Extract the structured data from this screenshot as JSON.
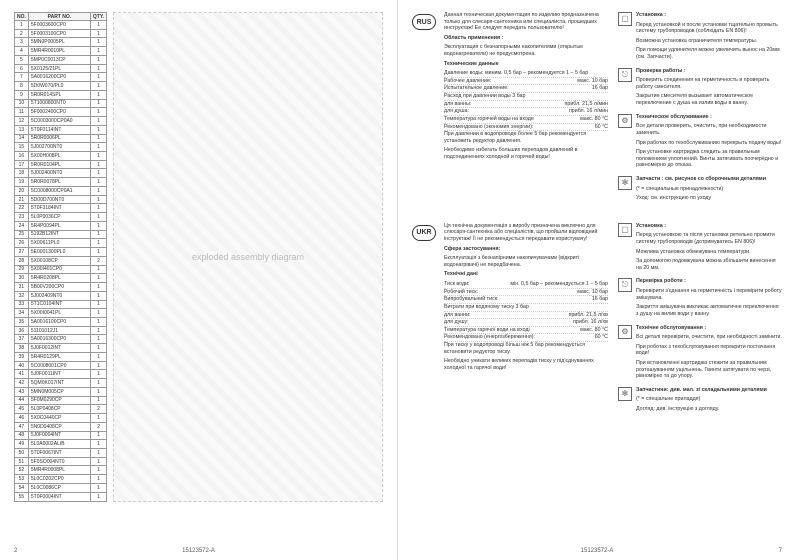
{
  "docNumber": "15123572-A",
  "pageLeft": "2",
  "pageRight": "7",
  "partsTable": {
    "headers": [
      "NO.",
      "PART NO.",
      "QTY."
    ],
    "rows": [
      [
        "1",
        "5F0003600CP0",
        "1"
      ],
      [
        "2",
        "5F0003100CP0",
        "1"
      ],
      [
        "3",
        "5MN0P0005PL",
        "1"
      ],
      [
        "4",
        "5MR4R0010PL",
        "1"
      ],
      [
        "5",
        "5MP0C0013CP",
        "1"
      ],
      [
        "6",
        "5X0125/21PL",
        "1"
      ],
      [
        "7",
        "5A0016200CP0",
        "1"
      ],
      [
        "8",
        "5D0W070/PL0",
        "1"
      ],
      [
        "9",
        "5R0R014SPL",
        "1"
      ],
      [
        "10",
        "5T1000800NT0",
        "1"
      ],
      [
        "11",
        "5F0002400CP0",
        "1"
      ],
      [
        "12",
        "5C0003000CP0A0",
        "1"
      ],
      [
        "13",
        "5T0F0114INT",
        "1"
      ],
      [
        "14",
        "5R0R0006PL",
        "1"
      ],
      [
        "15",
        "5J002700NT0",
        "1"
      ],
      [
        "16",
        "5X00H008PL",
        "1"
      ],
      [
        "17",
        "5R0R0104PL",
        "1"
      ],
      [
        "18",
        "5J002400NT0",
        "1"
      ],
      [
        "19",
        "5R0R0078PL",
        "1"
      ],
      [
        "20",
        "5C0008000CP0A1",
        "1"
      ],
      [
        "21",
        "5D00D700NT0",
        "1"
      ],
      [
        "22",
        "5T0F3184INT",
        "1"
      ],
      [
        "23",
        "5L0P0036CP",
        "1"
      ],
      [
        "24",
        "5R4P0094PL",
        "1"
      ],
      [
        "25",
        "5192B12INT",
        "1"
      ],
      [
        "26",
        "5X00611PL0",
        "1"
      ],
      [
        "27",
        "5E0001300PL0",
        "1"
      ],
      [
        "28",
        "5X00108CP",
        "2"
      ],
      [
        "29",
        "5X00I401CP0",
        "1"
      ],
      [
        "30",
        "5R4R0208PL",
        "1"
      ],
      [
        "31",
        "5B00V200CP0",
        "1"
      ],
      [
        "32",
        "5J002409NT0",
        "1"
      ],
      [
        "33",
        "5T1C0104INT",
        "1"
      ],
      [
        "34",
        "5X00I0041PL",
        "1"
      ],
      [
        "35",
        "5A0016100CP0",
        "1"
      ],
      [
        "36",
        "51101012J1",
        "1"
      ],
      [
        "37",
        "5A0016300CP0",
        "1"
      ],
      [
        "38",
        "5J0F0012INT",
        "1"
      ],
      [
        "39",
        "5R4R0129PL",
        "1"
      ],
      [
        "40",
        "5C0008001CP0",
        "1"
      ],
      [
        "41",
        "5J0F0011INT",
        "1"
      ],
      [
        "42",
        "5QM0K017INT",
        "1"
      ],
      [
        "43",
        "5MN0M005CP",
        "1"
      ],
      [
        "44",
        "5F0M0290CP",
        "1"
      ],
      [
        "45",
        "5L0P0408CP",
        "2"
      ],
      [
        "46",
        "5X0C0440CP",
        "1"
      ],
      [
        "47",
        "5N0D0408CP",
        "2"
      ],
      [
        "48",
        "5J0F0004INT",
        "1"
      ],
      [
        "49",
        "5L0A0002ALIB",
        "1"
      ],
      [
        "50",
        "5T0F0067INT",
        "1"
      ],
      [
        "51",
        "5F0SO004NT0",
        "1"
      ],
      [
        "52",
        "5MR4R0008PL",
        "1"
      ],
      [
        "53",
        "5L0C0202CP0",
        "1"
      ],
      [
        "54",
        "5L0C0086CP",
        "1"
      ],
      [
        "55",
        "5T0F0004INT",
        "1"
      ]
    ]
  },
  "diagramLabel": "exploded assembly diagram",
  "rus": {
    "badge": "RUS",
    "intro": "Данная техническая документация по изделию предназначена только для слесаря-сантехника или специалиста, прошедших инструктаж! Ее следует передать пользователю!",
    "scopeHead": "Область применения :",
    "scope": "Эксплуатация с безнапорными накопителями (открытые водонагреватели) не предусмотрена.",
    "techHead": "Технические данные",
    "specs": [
      [
        "Давление воды: миним. 0,5 бар – рекомендуется 1 – 5 бар",
        ""
      ],
      [
        "Рабочее давление:",
        "макс. 10 бар"
      ],
      [
        "Испытательное давление:",
        "16 бар"
      ],
      [
        "Расход при давлении воды 3 бар",
        ""
      ],
      [
        "  для ванны:",
        "прибл. 21,5 л/мин"
      ],
      [
        "  для душа:",
        "прибл. 16 л/мин"
      ],
      [
        "Температура горячей воды на входе",
        "макс. 80 °C"
      ],
      [
        "Рекомендовано (экономия энергии):",
        "60 °C"
      ]
    ],
    "note1": "При давлении в водопроводе более 5 бар рекомендуется установить редуктор давления.",
    "note2": "Необходимо избегать больших перепадов давлений в подсоединениях холодной и горячей воды!",
    "install": {
      "head": "Установка :",
      "lines": [
        "Перед установкой и после установки тщательно промыть систему трубопроводов (соблюдать EN 806)!",
        "Возможна установка ограничителя температуры.",
        "При помощи удлинителя можно увеличить вынос на 20мм (см. Запчасти)."
      ]
    },
    "check": {
      "head": "Проверка работы :",
      "lines": [
        "Проверить соединения на герметичность и проверить работу смесителя.",
        "Закрытие смесителя вызывает автоматическое переключение с душа на излив воды в ванну."
      ]
    },
    "maint": {
      "head": "Техническое обслуживание :",
      "lines": [
        "Все детали проверить, очистить, при необходимости заменить.",
        "При работах по техобслуживанию перекрыть подачу воды!",
        "При установке картриджа следить за правильным положением уплотнений. Винты затягивать поочерёдно и равномерно до отказа."
      ]
    },
    "spare": {
      "head": "Запчасти : см. рисунок со сборочными деталями",
      "lines": [
        "(* = специальные принадлежности)",
        "Уход: см. инструкцию по уходу"
      ]
    }
  },
  "ukr": {
    "badge": "UKR",
    "intro": "Ця технічна документація з виробу призначена виключно для слюсаря-сантехніка або спеціалістів, що пройшли відповідний інструктаж! Її не рекомендується передавати користувачу!",
    "scopeHead": "Сфера застосування:",
    "scope": "Експлуатація з безнапірними накопичувачами (відкриті водонагрівачі) не передбачена.",
    "techHead": "Технічні дані",
    "specs": [
      [
        "Тиск води:",
        "мін. 0,5 бар – рекомендується 1 – 5 бар"
      ],
      [
        "Робочий тиск:",
        "макс. 10 бар"
      ],
      [
        "Випробувальний тиск:",
        "16 бар"
      ],
      [
        "Витрати при водяному тиску 3 бар",
        ""
      ],
      [
        "  для ванни:",
        "прибл. 21,5 л/хв"
      ],
      [
        "  для душу:",
        "прибл. 16 л/хв"
      ],
      [
        "Температура гарячої води на вході",
        "макс. 80 °C"
      ],
      [
        "Рекомендовано (енергозбереження):",
        "60 °C"
      ]
    ],
    "note1": "При тиску у водопроводі більш ніж 5 бар рекомендується встановити редуктор тиску.",
    "note2": "Необхідно уникати великих перепадів тиску у під'єднуваннях холодної та гарячої води!",
    "install": {
      "head": "Установка :",
      "lines": [
        "Перед установкою та після установки ретельно промити систему трубопроводів (дотримуватись EN 806)!",
        "Можлива установка обмежувача температури.",
        "За допомогою подовжувача можна збільшити винесення на 20 мм."
      ]
    },
    "check": {
      "head": "Перевірка роботи :",
      "lines": [
        "Перевірити з'єднання на герметичність і перевірити роботу змішувача.",
        "Закриття змішувача викликає автоматичне переключення з душу на вилив води у ванну."
      ]
    },
    "maint": {
      "head": "Технічне обслуговування :",
      "lines": [
        "Всі деталі перевірити, очистити, при необхідності замінити.",
        "При роботах з техобслуговування перекрити постачання води!",
        "При встановленні картриджа стежити за правильним розташуванням ущільнень. Гвинти затягувати по черзі, рівномірно та до упору."
      ]
    },
    "spare": {
      "head": "Запчастини: див. мал. зі складальними деталями",
      "lines": [
        "(* = спеціальне приладдя)",
        "Догляд: див. інструкцію з догляду."
      ]
    }
  },
  "icons": {
    "install": "▢",
    "check": "⎋",
    "maint": "⚙",
    "cartridge": "🔍",
    "spare": "✻"
  }
}
